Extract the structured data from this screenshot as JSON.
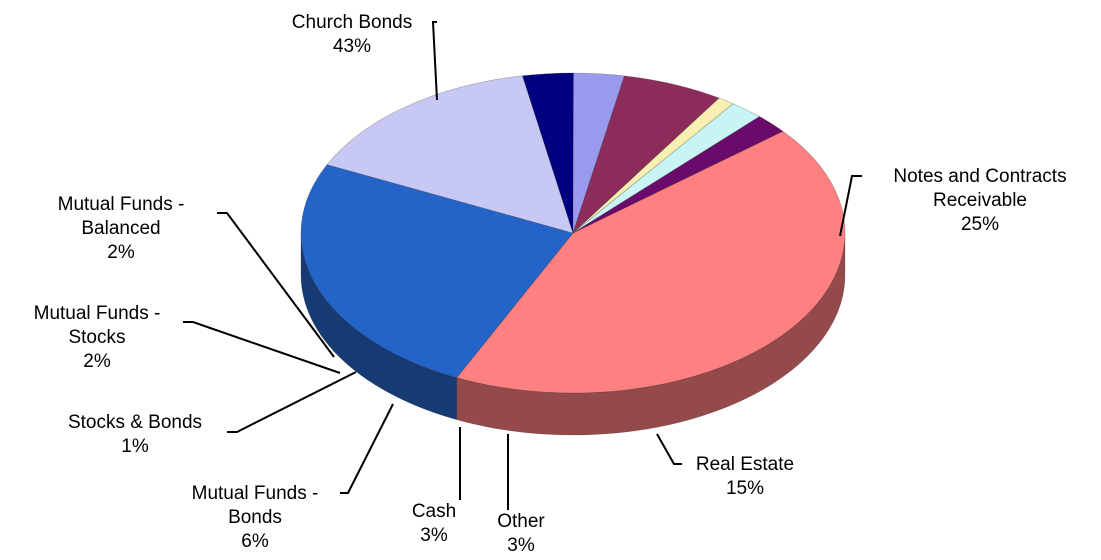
{
  "chart_data": {
    "type": "pie",
    "style": "3d",
    "title": "",
    "slices": [
      {
        "label_lines": [
          "Church Bonds"
        ],
        "percent_text": "43%",
        "value": 43,
        "color": "#ff8080"
      },
      {
        "label_lines": [
          "Notes and Contracts",
          "Receivable"
        ],
        "percent_text": "25%",
        "value": 25,
        "color": "#2464c8"
      },
      {
        "label_lines": [
          "Real Estate"
        ],
        "percent_text": "15%",
        "value": 15,
        "color": "#c8c8f4"
      },
      {
        "label_lines": [
          "Other"
        ],
        "percent_text": "3%",
        "value": 3,
        "color": "#000080"
      },
      {
        "label_lines": [
          "Cash"
        ],
        "percent_text": "3%",
        "value": 3,
        "color": "#9999ee"
      },
      {
        "label_lines": [
          "Mutual Funds -",
          "Bonds"
        ],
        "percent_text": "6%",
        "value": 6,
        "color": "#8c2c5a"
      },
      {
        "label_lines": [
          "Stocks & Bonds"
        ],
        "percent_text": "1%",
        "value": 1,
        "color": "#f8f0b0"
      },
      {
        "label_lines": [
          "Mutual Funds -",
          "Stocks"
        ],
        "percent_text": "2%",
        "value": 2,
        "color": "#c8f4f4"
      },
      {
        "label_lines": [
          "Mutual Funds -",
          "Balanced"
        ],
        "percent_text": "2%",
        "value": 2,
        "color": "#6a0a6a"
      }
    ]
  }
}
